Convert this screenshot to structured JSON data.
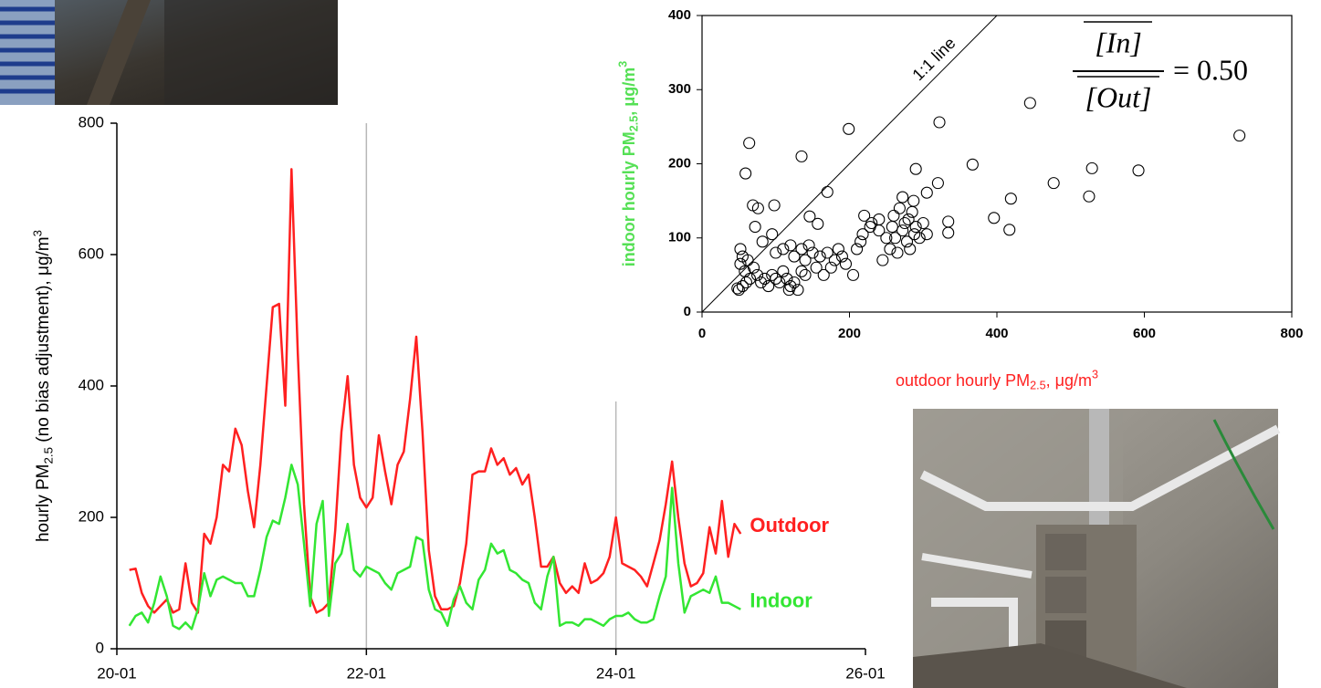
{
  "chart_data": [
    {
      "type": "line",
      "ylabel_parts": [
        "hourly PM",
        "2.5",
        " (no bias adjustment), μg/m",
        "3"
      ],
      "x": [
        20.1,
        20.15,
        20.2,
        20.25,
        20.3,
        20.35,
        20.4,
        20.45,
        20.5,
        20.55,
        20.6,
        20.65,
        20.7,
        20.75,
        20.8,
        20.85,
        20.9,
        20.95,
        21.0,
        21.05,
        21.1,
        21.15,
        21.2,
        21.25,
        21.3,
        21.35,
        21.4,
        21.45,
        21.5,
        21.55,
        21.6,
        21.65,
        21.7,
        21.75,
        21.8,
        21.85,
        21.9,
        21.95,
        22.0,
        22.05,
        22.1,
        22.15,
        22.2,
        22.25,
        22.3,
        22.35,
        22.4,
        22.45,
        22.5,
        22.55,
        22.6,
        22.65,
        22.7,
        22.75,
        22.8,
        22.85,
        22.9,
        22.95,
        23.0,
        23.05,
        23.1,
        23.15,
        23.2,
        23.25,
        23.3,
        23.35,
        23.4,
        23.45,
        23.5,
        23.55,
        23.6,
        23.65,
        23.7,
        23.75,
        23.8,
        23.85,
        23.9,
        23.95,
        24.0,
        24.05,
        24.1,
        24.15,
        24.2,
        24.25,
        24.3,
        24.35,
        24.4,
        24.45,
        24.5,
        24.55,
        24.6,
        24.65,
        24.7,
        24.75,
        24.8,
        24.85,
        24.9,
        24.95,
        25.0
      ],
      "xlim": [
        20,
        26
      ],
      "xticks": [
        {
          "value": 20,
          "label": "20-01"
        },
        {
          "value": 22,
          "label": "22-01"
        },
        {
          "value": 24,
          "label": "24-01"
        },
        {
          "value": 26,
          "label": "26-01"
        }
      ],
      "ylim": [
        0,
        800
      ],
      "yticks": [
        0,
        200,
        400,
        600,
        800
      ],
      "grid": "x",
      "series": [
        {
          "name": "Outdoor",
          "color": "#ff2020",
          "values": [
            120,
            122,
            85,
            65,
            55,
            65,
            75,
            55,
            60,
            130,
            70,
            55,
            175,
            160,
            200,
            280,
            270,
            335,
            310,
            240,
            185,
            280,
            400,
            520,
            525,
            370,
            730,
            450,
            220,
            80,
            55,
            60,
            70,
            180,
            330,
            415,
            280,
            230,
            215,
            230,
            325,
            270,
            220,
            280,
            300,
            380,
            475,
            330,
            150,
            80,
            60,
            60,
            65,
            100,
            160,
            265,
            270,
            270,
            305,
            280,
            290,
            265,
            275,
            250,
            265,
            200,
            125,
            125,
            140,
            100,
            85,
            95,
            85,
            130,
            100,
            105,
            115,
            140,
            200,
            130,
            125,
            120,
            110,
            95,
            130,
            165,
            220,
            285,
            200,
            130,
            95,
            100,
            115,
            185,
            145,
            225,
            140,
            190,
            175
          ]
        },
        {
          "name": "Indoor",
          "color": "#33e633",
          "values": [
            35,
            50,
            55,
            40,
            70,
            110,
            80,
            35,
            30,
            40,
            30,
            60,
            115,
            80,
            105,
            110,
            105,
            100,
            100,
            80,
            80,
            120,
            170,
            195,
            190,
            230,
            280,
            250,
            160,
            65,
            190,
            225,
            50,
            130,
            145,
            190,
            120,
            110,
            125,
            120,
            115,
            100,
            90,
            115,
            120,
            125,
            170,
            165,
            90,
            60,
            55,
            35,
            75,
            95,
            70,
            60,
            105,
            120,
            160,
            145,
            150,
            120,
            115,
            105,
            100,
            70,
            60,
            110,
            140,
            35,
            40,
            40,
            35,
            45,
            45,
            40,
            35,
            45,
            50,
            50,
            55,
            45,
            40,
            40,
            45,
            80,
            110,
            245,
            130,
            55,
            80,
            85,
            90,
            85,
            110,
            70,
            70,
            65,
            60
          ]
        }
      ]
    },
    {
      "type": "scatter",
      "xlabel_parts": [
        "outdoor hourly PM",
        "2.5",
        ", μg/m",
        "3"
      ],
      "ylabel_parts": [
        "indoor hourly PM",
        "2.5",
        ", μg/m",
        "3"
      ],
      "xlabel_color": "#ff2020",
      "ylabel_color": "#55e055",
      "annotation": "1:1 line",
      "ratio": {
        "numerator": "[In]",
        "denominator": "[Out]",
        "text": "= 0.50"
      },
      "xlim": [
        0,
        800
      ],
      "xticks": [
        0,
        200,
        400,
        600,
        800
      ],
      "ylim": [
        0,
        400
      ],
      "yticks": [
        0,
        100,
        200,
        300,
        400
      ],
      "marker_color": "#000000",
      "x": [
        50,
        55,
        48,
        60,
        65,
        58,
        52,
        55,
        52,
        62,
        70,
        75,
        80,
        85,
        90,
        95,
        100,
        105,
        110,
        115,
        120,
        125,
        118,
        130,
        135,
        140,
        82,
        95,
        100,
        110,
        120,
        125,
        135,
        140,
        145,
        150,
        155,
        160,
        165,
        170,
        175,
        180,
        185,
        190,
        195,
        205,
        210,
        215,
        220,
        230,
        240,
        245,
        250,
        255,
        258,
        260,
        262,
        265,
        268,
        272,
        275,
        278,
        280,
        282,
        285,
        288,
        290,
        295,
        300,
        305,
        218,
        228,
        240,
        64,
        59,
        199,
        135,
        322,
        445,
        729,
        367,
        290,
        529,
        592,
        477,
        525,
        419,
        396,
        417,
        334,
        334,
        320,
        305,
        272,
        287,
        170,
        146,
        157,
        69,
        76,
        98,
        72
      ],
      "y": [
        30,
        35,
        32,
        40,
        45,
        55,
        65,
        75,
        85,
        70,
        60,
        50,
        40,
        45,
        35,
        50,
        45,
        40,
        55,
        45,
        35,
        40,
        30,
        30,
        55,
        50,
        95,
        105,
        80,
        85,
        90,
        75,
        85,
        70,
        90,
        80,
        60,
        75,
        50,
        80,
        60,
        70,
        85,
        75,
        65,
        50,
        85,
        95,
        130,
        120,
        110,
        70,
        100,
        85,
        115,
        130,
        100,
        80,
        140,
        110,
        120,
        95,
        125,
        85,
        135,
        105,
        115,
        100,
        120,
        105,
        105,
        115,
        125,
        228,
        187,
        247,
        210,
        256,
        282,
        238,
        199,
        193,
        194,
        191,
        174,
        156,
        153,
        127,
        111,
        122,
        107,
        174,
        161,
        155,
        150,
        162,
        129,
        119,
        144,
        140,
        144,
        115
      ]
    }
  ]
}
